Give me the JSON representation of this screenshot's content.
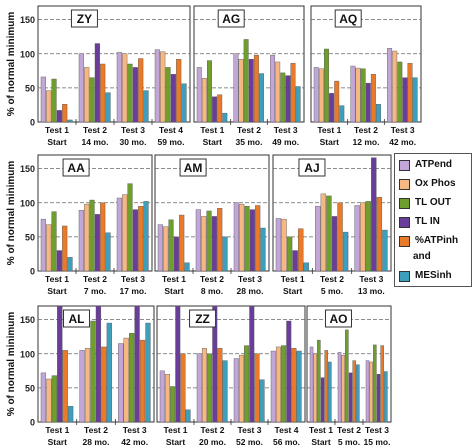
{
  "figure": {
    "ylabel": "% of normal minimum"
  },
  "legend": {
    "items": [
      {
        "label": "ATPend",
        "color": "#c3a6d8"
      },
      {
        "label": "Ox Phos",
        "color": "#f6b783"
      },
      {
        "label": "TL OUT",
        "color": "#6e9e2c"
      },
      {
        "label": "TL IN",
        "color": "#6a3d9a"
      },
      {
        "label": "%ATPinh",
        "color": "#e97a2a"
      },
      {
        "label": "and",
        "color": ""
      },
      {
        "label": "MESinh",
        "color": "#3d9fbc"
      }
    ]
  },
  "chart_data": [
    {
      "type": "bar",
      "title": "ZY",
      "ylim": [
        0,
        170
      ],
      "yticks": [
        0,
        50,
        100,
        150
      ],
      "ylabel": "% of normal minimum",
      "categories": [
        "Test 1",
        "Test 2",
        "Test 3",
        "Test 4"
      ],
      "sublabels": [
        "Start",
        "14 mo.",
        "30 mo.",
        "59 mo."
      ],
      "series": [
        {
          "name": "ATPend",
          "values": [
            66,
            100,
            102,
            106
          ]
        },
        {
          "name": "Ox Phos",
          "values": [
            46,
            80,
            100,
            103
          ]
        },
        {
          "name": "TL OUT",
          "values": [
            63,
            65,
            85,
            80
          ]
        },
        {
          "name": "TL IN",
          "values": [
            17,
            115,
            80,
            70
          ]
        },
        {
          "name": "%ATPinh",
          "values": [
            26,
            85,
            93,
            92
          ]
        },
        {
          "name": "MESinh",
          "values": [
            3,
            43,
            46,
            56
          ]
        }
      ]
    },
    {
      "type": "bar",
      "title": "AG",
      "ylim": [
        0,
        170
      ],
      "yticks": [
        0,
        50,
        100,
        150
      ],
      "categories": [
        "Test 1",
        "Test 2",
        "Test 3"
      ],
      "sublabels": [
        "Start",
        "35 mo.",
        "49 mo."
      ],
      "series": [
        {
          "name": "ATPend",
          "values": [
            80,
            100,
            98
          ]
        },
        {
          "name": "Ox Phos",
          "values": [
            64,
            92,
            88
          ]
        },
        {
          "name": "TL OUT",
          "values": [
            90,
            121,
            72
          ]
        },
        {
          "name": "TL IN",
          "values": [
            37,
            92,
            68
          ]
        },
        {
          "name": "%ATPinh",
          "values": [
            40,
            98,
            86
          ]
        },
        {
          "name": "MESinh",
          "values": [
            13,
            71,
            52
          ]
        }
      ]
    },
    {
      "type": "bar",
      "title": "AQ",
      "ylim": [
        0,
        170
      ],
      "yticks": [
        0,
        50,
        100,
        150
      ],
      "categories": [
        "Test 1",
        "Test 2",
        "Test 3"
      ],
      "sublabels": [
        "Start",
        "12 mo.",
        "42 mo."
      ],
      "series": [
        {
          "name": "ATPend",
          "values": [
            80,
            82,
            108
          ]
        },
        {
          "name": "Ox Phos",
          "values": [
            78,
            79,
            104
          ]
        },
        {
          "name": "TL OUT",
          "values": [
            107,
            78,
            88
          ]
        },
        {
          "name": "TL IN",
          "values": [
            42,
            57,
            65
          ]
        },
        {
          "name": "%ATPinh",
          "values": [
            60,
            70,
            86
          ]
        },
        {
          "name": "MESinh",
          "values": [
            24,
            26,
            65
          ]
        }
      ]
    },
    {
      "type": "bar",
      "title": "AA",
      "ylim": [
        0,
        170
      ],
      "yticks": [
        0,
        50,
        100,
        150
      ],
      "ylabel": "% of normal minimum",
      "categories": [
        "Test 1",
        "Test 2",
        "Test 3"
      ],
      "sublabels": [
        "Start",
        "7 mo.",
        "17 mo."
      ],
      "series": [
        {
          "name": "ATPend",
          "values": [
            76,
            89,
            107
          ]
        },
        {
          "name": "Ox Phos",
          "values": [
            68,
            98,
            112
          ]
        },
        {
          "name": "TL OUT",
          "values": [
            87,
            104,
            128
          ]
        },
        {
          "name": "TL IN",
          "values": [
            30,
            83,
            90
          ]
        },
        {
          "name": "%ATPinh",
          "values": [
            66,
            100,
            95
          ]
        },
        {
          "name": "MESinh",
          "values": [
            20,
            56,
            102
          ]
        }
      ]
    },
    {
      "type": "bar",
      "title": "AM",
      "ylim": [
        0,
        170
      ],
      "yticks": [
        0,
        50,
        100,
        150
      ],
      "categories": [
        "Test 1",
        "Test 2",
        "Test 3"
      ],
      "sublabels": [
        "Start",
        "8 mo.",
        "28 mo."
      ],
      "series": [
        {
          "name": "ATPend",
          "values": [
            68,
            90,
            100
          ]
        },
        {
          "name": "Ox Phos",
          "values": [
            65,
            80,
            98
          ]
        },
        {
          "name": "TL OUT",
          "values": [
            75,
            88,
            95
          ]
        },
        {
          "name": "TL IN",
          "values": [
            50,
            80,
            90
          ]
        },
        {
          "name": "%ATPinh",
          "values": [
            82,
            92,
            96
          ]
        },
        {
          "name": "MESinh",
          "values": [
            12,
            50,
            63
          ]
        }
      ]
    },
    {
      "type": "bar",
      "title": "AJ",
      "ylim": [
        0,
        170
      ],
      "yticks": [
        0,
        50,
        100,
        150
      ],
      "categories": [
        "Test 1",
        "Test 2",
        "Test 3"
      ],
      "sublabels": [
        "Start",
        "5 mo.",
        "13 mo."
      ],
      "series": [
        {
          "name": "ATPend",
          "values": [
            77,
            95,
            96
          ]
        },
        {
          "name": "Ox Phos",
          "values": [
            76,
            113,
            100
          ]
        },
        {
          "name": "TL OUT",
          "values": [
            50,
            110,
            102
          ]
        },
        {
          "name": "TL IN",
          "values": [
            30,
            80,
            166
          ]
        },
        {
          "name": "%ATPinh",
          "values": [
            62,
            100,
            108
          ]
        },
        {
          "name": "MESinh",
          "values": [
            12,
            57,
            60
          ]
        }
      ]
    },
    {
      "type": "bar",
      "title": "AL",
      "ylim": [
        0,
        170
      ],
      "yticks": [
        0,
        50,
        100,
        150
      ],
      "ylabel": "% of normal minimum",
      "categories": [
        "Test 1",
        "Test 2",
        "Test 3"
      ],
      "sublabels": [
        "Start",
        "28 mo.",
        "42 mo."
      ],
      "series": [
        {
          "name": "ATPend",
          "values": [
            72,
            105,
            115
          ]
        },
        {
          "name": "Ox Phos",
          "values": [
            63,
            108,
            123
          ]
        },
        {
          "name": "TL OUT",
          "values": [
            68,
            148,
            130
          ]
        },
        {
          "name": "TL IN",
          "values": [
            172,
            172,
            175
          ]
        },
        {
          "name": "%ATPinh",
          "values": [
            105,
            110,
            120
          ]
        },
        {
          "name": "MESinh",
          "values": [
            23,
            145,
            145
          ]
        }
      ]
    },
    {
      "type": "bar",
      "title": "ZZ",
      "ylim": [
        0,
        170
      ],
      "yticks": [
        0,
        50,
        100,
        150
      ],
      "categories": [
        "Test 1",
        "Test 2",
        "Test 3",
        "Test 4"
      ],
      "sublabels": [
        "Start",
        "20 mo.",
        "52 mo.",
        "56 mo."
      ],
      "series": [
        {
          "name": "ATPend",
          "values": [
            75,
            100,
            93,
            104
          ]
        },
        {
          "name": "Ox Phos",
          "values": [
            70,
            108,
            98,
            110
          ]
        },
        {
          "name": "TL OUT",
          "values": [
            52,
            100,
            112,
            112
          ]
        },
        {
          "name": "TL IN",
          "values": [
            172,
            172,
            172,
            148
          ]
        },
        {
          "name": "%ATPinh",
          "values": [
            100,
            108,
            100,
            108
          ]
        },
        {
          "name": "MESinh",
          "values": [
            18,
            90,
            62,
            104
          ]
        }
      ]
    },
    {
      "type": "bar",
      "title": "AO",
      "ylim": [
        0,
        170
      ],
      "yticks": [
        0,
        50,
        100,
        150
      ],
      "categories": [
        "Test 1",
        "Test 2",
        "Test 3"
      ],
      "sublabels": [
        "Start",
        "5 mo.",
        "15 mo."
      ],
      "series": [
        {
          "name": "ATPend",
          "values": [
            110,
            102,
            90
          ]
        },
        {
          "name": "Ox Phos",
          "values": [
            100,
            98,
            88
          ]
        },
        {
          "name": "TL OUT",
          "values": [
            120,
            135,
            113
          ]
        },
        {
          "name": "TL IN",
          "values": [
            65,
            72,
            70
          ]
        },
        {
          "name": "%ATPinh",
          "values": [
            105,
            90,
            112
          ]
        },
        {
          "name": "MESinh",
          "values": [
            88,
            84,
            74
          ]
        }
      ]
    }
  ]
}
